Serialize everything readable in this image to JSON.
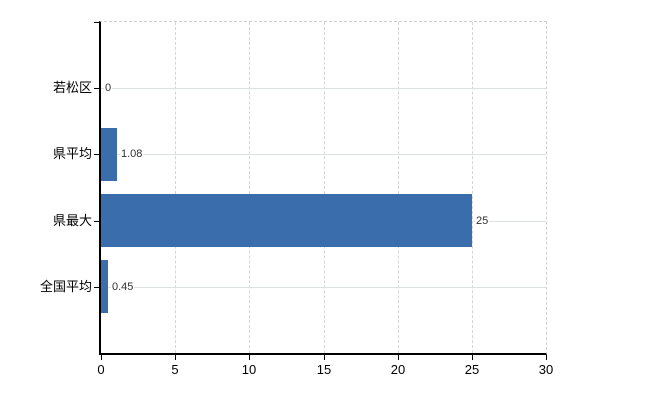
{
  "chart_data": {
    "type": "bar",
    "orientation": "horizontal",
    "title": "",
    "xlabel": "",
    "ylabel": "",
    "categories": [
      "若松区",
      "県平均",
      "県最大",
      "全国平均"
    ],
    "values": [
      0,
      1.08,
      25,
      0.45
    ],
    "value_labels": [
      "0",
      "1.08",
      "25",
      "0.45"
    ],
    "xlim": [
      0,
      30
    ],
    "xticks": [
      0,
      5,
      10,
      15,
      20,
      25,
      30
    ],
    "xtick_labels": [
      "0",
      "5",
      "10",
      "15",
      "20",
      "25",
      "30"
    ],
    "grid": true,
    "legend": false
  },
  "colors": {
    "bar": "#3a6dab",
    "axis": "#000000",
    "gridline_horizontal": "#dce2dc",
    "gridline_vertical": "#d4d4d4",
    "plot_border_dashed": "#d2cdd2",
    "category_label": "#000000",
    "value_label": "#303030",
    "background": "#ffffff"
  }
}
